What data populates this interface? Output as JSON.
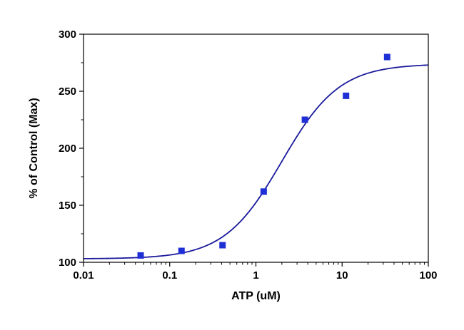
{
  "chart_data": {
    "type": "scatter",
    "title": "",
    "xlabel": "ATP (uM)",
    "ylabel": "% of Control (Max)",
    "xscale": "log",
    "xlim": [
      0.01,
      100
    ],
    "ylim": [
      100,
      300
    ],
    "x_ticks": [
      0.01,
      0.1,
      1,
      10,
      100
    ],
    "x_tick_labels": [
      "0.01",
      "0.1",
      "1",
      "10",
      "100"
    ],
    "y_ticks": [
      100,
      150,
      200,
      250,
      300
    ],
    "y_tick_labels": [
      "100",
      "150",
      "200",
      "250",
      "300"
    ],
    "grid": false,
    "legend": "none",
    "colors": {
      "points": "#1f2fd6",
      "curve": "#1a1a9c",
      "axes": "#000000"
    },
    "points": {
      "x": [
        0.046,
        0.137,
        0.41,
        1.23,
        3.7,
        11.1,
        33.3
      ],
      "y": [
        106,
        110,
        115,
        162,
        225,
        246,
        280
      ]
    },
    "fit_curve": {
      "model": "sigmoidal dose-response",
      "bottom": 103,
      "top": 274,
      "ec50": 2.0,
      "hill": 1.3
    }
  }
}
